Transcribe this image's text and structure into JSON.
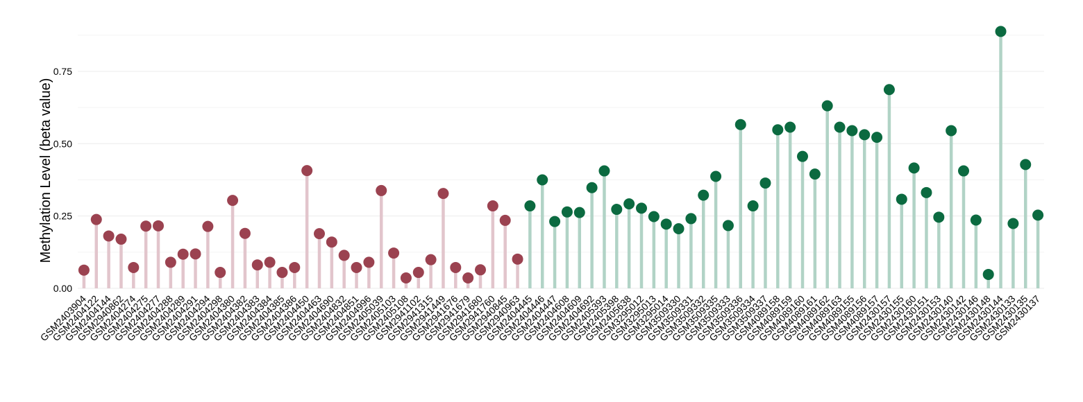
{
  "chart_data": {
    "type": "lollipop",
    "title": "",
    "xlabel": "",
    "ylabel": "Methylation Level (beta value)",
    "ylim": [
      0,
      0.92
    ],
    "yticks": [
      0.0,
      0.25,
      0.5,
      0.75
    ],
    "ytick_labels": [
      "0.00",
      "0.25",
      "0.50",
      "0.75"
    ],
    "grid": "horizontal, light",
    "legend": "none",
    "colors": {
      "group1_point": "#9b4250",
      "group1_stem": "#e2c5cc",
      "group2_point": "#0b6a40",
      "group2_stem": "#b1d3c6"
    },
    "categories": [
      "GSM2403904",
      "GSM2404122",
      "GSM2404144",
      "GSM2940862",
      "GSM2404274",
      "GSM2404275",
      "GSM2404277",
      "GSM2404288",
      "GSM2404289",
      "GSM2404291",
      "GSM2404294",
      "GSM2404298",
      "GSM2404380",
      "GSM2404382",
      "GSM2404383",
      "GSM2404384",
      "GSM2404385",
      "GSM2404386",
      "GSM2404450",
      "GSM2404463",
      "GSM2404690",
      "GSM2404832",
      "GSM2404851",
      "GSM2404996",
      "GSM2405039",
      "GSM2405103",
      "GSM2405108",
      "GSM2941102",
      "GSM2941315",
      "GSM2941449",
      "GSM2941676",
      "GSM2941679",
      "GSM2941680",
      "GSM2941760",
      "GSM2940845",
      "GSM2940963",
      "GSM2404445",
      "GSM2404446",
      "GSM2404447",
      "GSM2404608",
      "GSM2404609",
      "GSM2404692",
      "GSM2405393",
      "GSM2405398",
      "GSM2405638",
      "GSM3295012",
      "GSM3295013",
      "GSM3295014",
      "GSM3509330",
      "GSM3509331",
      "GSM3509332",
      "GSM3509335",
      "GSM3509333",
      "GSM3509336",
      "GSM3509334",
      "GSM3509337",
      "GSM4089158",
      "GSM4089159",
      "GSM4089160",
      "GSM4089161",
      "GSM4089162",
      "GSM4089163",
      "GSM4089155",
      "GSM4089156",
      "GSM4089157",
      "GSM2430157",
      "GSM2430155",
      "GSM2430160",
      "GSM2430151",
      "GSM2430153",
      "GSM2430140",
      "GSM2430142",
      "GSM2430146",
      "GSM2430148",
      "GSM2430144",
      "GSM2430133",
      "GSM2430135",
      "GSM2430137"
    ],
    "values": [
      0.063,
      0.238,
      0.181,
      0.17,
      0.072,
      0.215,
      0.216,
      0.09,
      0.118,
      0.119,
      0.214,
      0.055,
      0.304,
      0.19,
      0.081,
      0.09,
      0.055,
      0.072,
      0.407,
      0.189,
      0.16,
      0.114,
      0.072,
      0.09,
      0.338,
      0.122,
      0.036,
      0.055,
      0.099,
      0.328,
      0.072,
      0.036,
      0.064,
      0.285,
      0.235,
      0.101,
      0.285,
      0.375,
      0.231,
      0.264,
      0.262,
      0.348,
      0.406,
      0.273,
      0.292,
      0.277,
      0.248,
      0.222,
      0.206,
      0.241,
      0.322,
      0.387,
      0.217,
      0.566,
      0.285,
      0.364,
      0.548,
      0.557,
      0.456,
      0.395,
      0.631,
      0.557,
      0.545,
      0.531,
      0.522,
      0.687,
      0.308,
      0.416,
      0.331,
      0.246,
      0.545,
      0.406,
      0.236,
      0.048,
      0.888,
      0.224,
      0.428,
      0.253
    ],
    "groups": [
      1,
      1,
      1,
      1,
      1,
      1,
      1,
      1,
      1,
      1,
      1,
      1,
      1,
      1,
      1,
      1,
      1,
      1,
      1,
      1,
      1,
      1,
      1,
      1,
      1,
      1,
      1,
      1,
      1,
      1,
      1,
      1,
      1,
      1,
      1,
      1,
      2,
      2,
      2,
      2,
      2,
      2,
      2,
      2,
      2,
      2,
      2,
      2,
      2,
      2,
      2,
      2,
      2,
      2,
      2,
      2,
      2,
      2,
      2,
      2,
      2,
      2,
      2,
      2,
      2,
      2,
      2,
      2,
      2,
      2,
      2,
      2,
      2,
      2,
      2,
      2,
      2,
      2
    ]
  }
}
